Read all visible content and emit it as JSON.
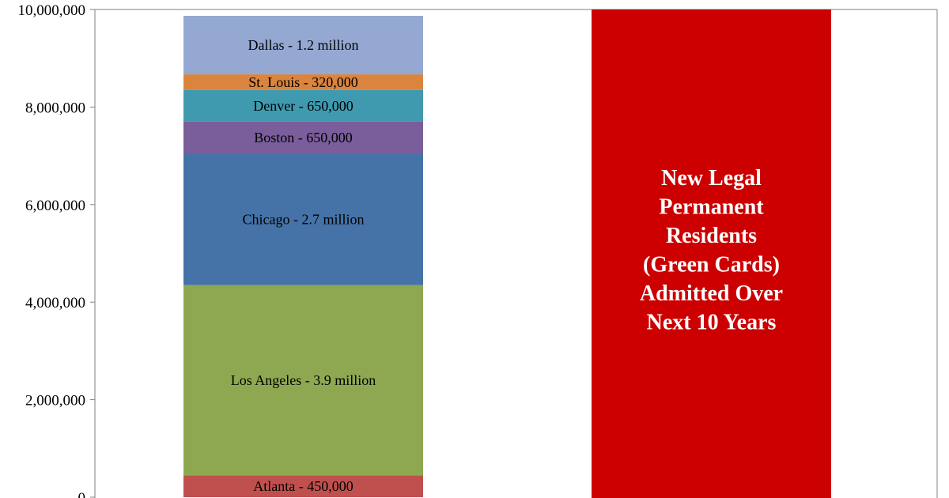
{
  "chart_data": {
    "type": "bar",
    "stacked": true,
    "categories": [
      "",
      ""
    ],
    "ylim": [
      0,
      10000000
    ],
    "yticks": [
      0,
      2000000,
      4000000,
      6000000,
      8000000,
      10000000
    ],
    "ytick_labels": [
      "0",
      "2,000,000",
      "4,000,000",
      "6,000,000",
      "8,000,000",
      "10,000,000"
    ],
    "grid": false,
    "legend": "none",
    "stack_segments": [
      {
        "label": "Atlanta - 450,000",
        "value": 450000,
        "color": "#C0504D"
      },
      {
        "label": "Los Angeles - 3.9 million",
        "value": 3900000,
        "color": "#8EA851"
      },
      {
        "label": "Chicago - 2.7 million",
        "value": 2700000,
        "color": "#4572A7"
      },
      {
        "label": "Boston - 650,000",
        "value": 650000,
        "color": "#7A5D9B"
      },
      {
        "label": "Denver - 650,000",
        "value": 650000,
        "color": "#3F9AB0"
      },
      {
        "label": "St. Louis - 320,000",
        "value": 320000,
        "color": "#DB843D"
      },
      {
        "label": "Dallas - 1.2 million",
        "value": 1200000,
        "color": "#94A8D2"
      }
    ],
    "comparison_bar": {
      "label_lines": [
        "New Legal",
        "Permanent",
        "Residents",
        "(Green Cards)",
        "Admitted Over",
        "Next 10 Years"
      ],
      "value": 10000000,
      "color": "#CC0000"
    }
  }
}
